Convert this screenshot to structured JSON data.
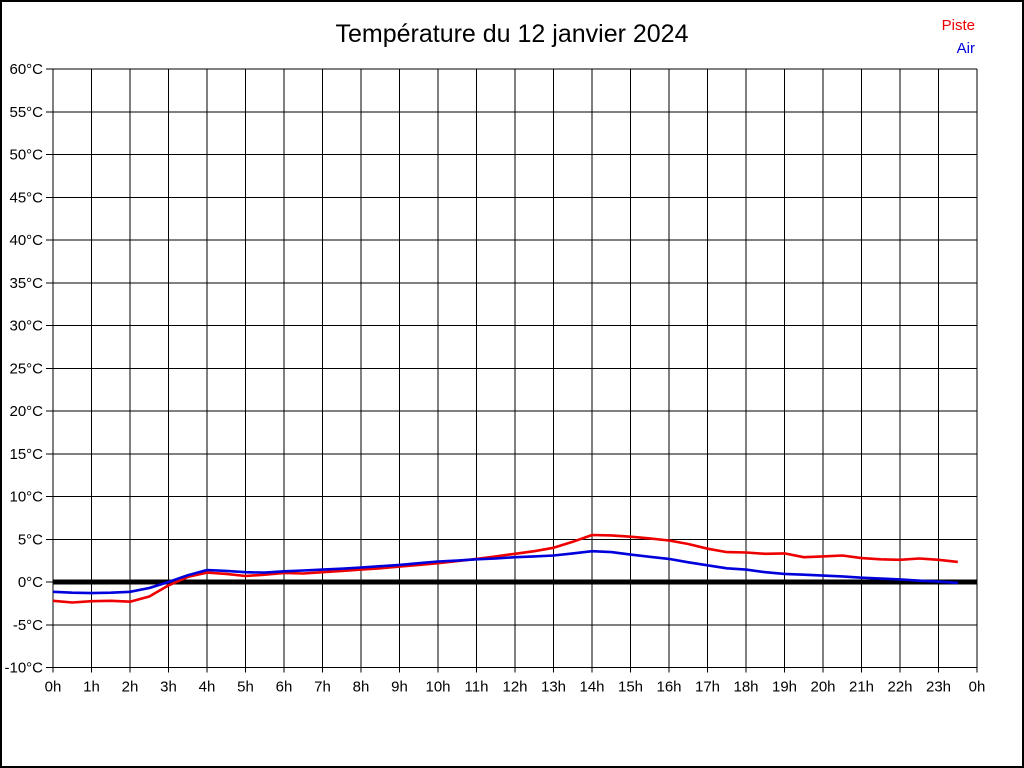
{
  "chart_data": {
    "type": "line",
    "title": "Température du 12 janvier 2024",
    "xlabel": "",
    "ylabel": "",
    "xlim": [
      0,
      24
    ],
    "ylim": [
      -10,
      60
    ],
    "y_step": 5,
    "x_step": 1,
    "grid": true,
    "zero_line": true,
    "zero_line_value": 0,
    "legend_position": "top-right",
    "x_tick_labels": [
      "0h",
      "1h",
      "2h",
      "3h",
      "4h",
      "5h",
      "6h",
      "7h",
      "8h",
      "9h",
      "10h",
      "11h",
      "12h",
      "13h",
      "14h",
      "15h",
      "16h",
      "17h",
      "18h",
      "19h",
      "20h",
      "21h",
      "22h",
      "23h",
      "0h"
    ],
    "y_tick_labels": [
      "60°C",
      "55°C",
      "50°C",
      "45°C",
      "40°C",
      "35°C",
      "30°C",
      "25°C",
      "20°C",
      "15°C",
      "10°C",
      "5°C",
      "0°C",
      "-5°C",
      "-10°C"
    ],
    "x": [
      0,
      0.5,
      1,
      1.5,
      2,
      2.5,
      3,
      3.5,
      4,
      4.5,
      5,
      5.5,
      6,
      6.5,
      7,
      7.5,
      8,
      8.5,
      9,
      9.5,
      10,
      10.5,
      11,
      11.5,
      12,
      12.5,
      13,
      13.5,
      14,
      14.5,
      15,
      15.5,
      16,
      16.5,
      17,
      17.5,
      18,
      18.5,
      19,
      19.5,
      20,
      20.5,
      21,
      21.5,
      22,
      22.5,
      23,
      23.5
    ],
    "series": [
      {
        "name": "Piste",
        "color": "#ee0000",
        "values": [
          -2.2,
          -2.4,
          -2.25,
          -2.2,
          -2.3,
          -1.7,
          -0.4,
          0.6,
          1.1,
          0.95,
          0.7,
          0.85,
          1.05,
          1.0,
          1.15,
          1.3,
          1.45,
          1.6,
          1.8,
          2.0,
          2.2,
          2.45,
          2.7,
          3.0,
          3.3,
          3.6,
          4.0,
          4.7,
          5.5,
          5.45,
          5.3,
          5.1,
          4.85,
          4.45,
          3.9,
          3.5,
          3.45,
          3.3,
          3.35,
          2.9,
          3.0,
          3.1,
          2.8,
          2.65,
          2.6,
          2.75,
          2.6,
          2.35
        ]
      },
      {
        "name": "Air",
        "color": "#0000dd",
        "values": [
          -1.15,
          -1.25,
          -1.3,
          -1.25,
          -1.15,
          -0.7,
          0.0,
          0.8,
          1.4,
          1.3,
          1.15,
          1.1,
          1.25,
          1.35,
          1.45,
          1.55,
          1.7,
          1.85,
          2.0,
          2.2,
          2.4,
          2.5,
          2.65,
          2.75,
          2.9,
          3.0,
          3.1,
          3.35,
          3.6,
          3.5,
          3.2,
          2.95,
          2.7,
          2.3,
          1.95,
          1.6,
          1.45,
          1.15,
          0.95,
          0.85,
          0.75,
          0.65,
          0.5,
          0.4,
          0.3,
          0.15,
          0.05,
          -0.1
        ]
      }
    ],
    "colors": {
      "grid": "#000000",
      "axis": "#000000",
      "zero_line": "#000000",
      "background": "#ffffff"
    }
  }
}
